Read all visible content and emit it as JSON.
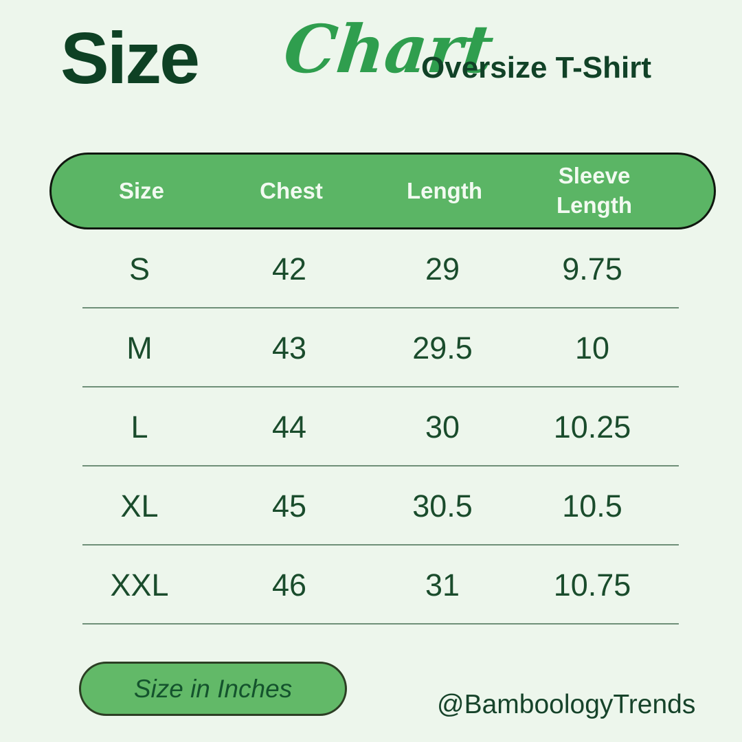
{
  "page": {
    "background": "#edf6ec"
  },
  "header": {
    "title_primary": "Size",
    "title_script": "Chart",
    "product": "Oversize T-Shirt"
  },
  "chart_data": {
    "type": "table",
    "title": "Size Chart",
    "subtitle": "Oversize T-Shirt",
    "columns": [
      "Size",
      "Chest",
      "Length",
      "Sleeve Length"
    ],
    "rows": [
      [
        "S",
        42,
        29,
        9.75
      ],
      [
        "M",
        43,
        29.5,
        10
      ],
      [
        "L",
        44,
        30,
        10.25
      ],
      [
        "XL",
        45,
        30.5,
        10.5
      ],
      [
        "XXL",
        46,
        31,
        10.75
      ]
    ],
    "units": "inches"
  },
  "footer": {
    "units_label": "Size in Inches",
    "brand_handle": "@BamboologyTrends"
  },
  "colors": {
    "background": "#edf6ec",
    "pill_green": "#5bb565",
    "pill_border": "#10170f",
    "header_text": "#f2faf1",
    "title_dark_green": "#0e4124",
    "script_green": "#2f9e4e",
    "body_text_green": "#1a4c2c",
    "divider": "#6f8f78"
  }
}
